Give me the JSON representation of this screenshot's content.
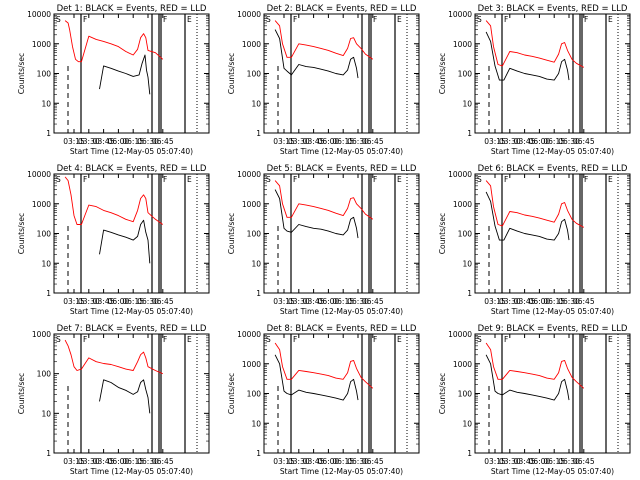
{
  "x_tick_labels": [
    "03:15",
    "03:30",
    "03:45",
    "06:00",
    "06:15",
    "06:30",
    "06:45"
  ],
  "y_tick_labels": [
    "1",
    "10",
    "100",
    "1000",
    "10000"
  ],
  "y_axis_label": "Counts/sec",
  "x_axis_label": "Start Time (12-May-05 05:07:40)",
  "colors": {
    "events": "#000000",
    "lld": "#ff0000",
    "axes": "#000000"
  },
  "chart_data": [
    {
      "type": "line",
      "panel": "Det 1",
      "title": "Det 1: BLACK = Events, RED = LLD",
      "xlabel": "Start Time (12-May-05 05:07:40)",
      "ylabel": "Counts/sec",
      "x_ticks": [
        "03:15",
        "03:30",
        "03:45",
        "06:00",
        "06:15",
        "06:30",
        "06:45"
      ],
      "y_scale": "log",
      "ylim": [
        1,
        10000
      ],
      "markers": [
        "S",
        "F",
        "F",
        "E"
      ],
      "series": [
        {
          "color": "#000000",
          "x_index": [
            0.0,
            0.9,
            1.3,
            1.5,
            1.7,
            1.72,
            2.0,
            2.5,
            3.0,
            3.5,
            4.0,
            4.4,
            4.6,
            4.8,
            4.9,
            5.0,
            5.12
          ],
          "values": [
            null,
            null,
            null,
            null,
            null,
            30,
            180,
            150,
            120,
            100,
            80,
            90,
            220,
            420,
            130,
            75,
            20
          ]
        },
        {
          "color": "#ff0000",
          "x_index": [
            -0.6,
            -0.4,
            -0.3,
            -0.1,
            0.1,
            0.3,
            0.5,
            1.0,
            1.5,
            2.0,
            2.5,
            3.0,
            3.5,
            4.0,
            4.3,
            4.5,
            4.7,
            4.85,
            5.0,
            5.5,
            6.0
          ],
          "values": [
            6000,
            5000,
            3000,
            800,
            300,
            250,
            250,
            1800,
            1400,
            1200,
            1000,
            800,
            550,
            420,
            650,
            1600,
            2200,
            1600,
            600,
            500,
            300
          ]
        }
      ]
    },
    {
      "type": "line",
      "panel": "Det 2",
      "title": "Det 2: BLACK = Events, RED = LLD",
      "xlabel": "Start Time (12-May-05 05:07:40)",
      "ylabel": "Counts/sec",
      "x_ticks": [
        "03:15",
        "03:30",
        "03:45",
        "06:00",
        "06:15",
        "06:30",
        "06:45"
      ],
      "y_scale": "log",
      "ylim": [
        1,
        10000
      ],
      "markers": [
        "S",
        "F",
        "F",
        "E"
      ],
      "series": [
        {
          "color": "#000000",
          "x_index": [
            -0.6,
            -0.3,
            0.0,
            0.2,
            0.5,
            1.0,
            1.5,
            2.0,
            2.5,
            3.0,
            3.5,
            4.0,
            4.3,
            4.5,
            4.7,
            4.9,
            5.0
          ],
          "values": [
            3000,
            1500,
            150,
            120,
            90,
            200,
            170,
            160,
            140,
            120,
            100,
            90,
            130,
            300,
            350,
            150,
            70
          ]
        },
        {
          "color": "#ff0000",
          "x_index": [
            -0.6,
            -0.3,
            -0.1,
            0.2,
            0.5,
            1.0,
            1.5,
            2.0,
            2.5,
            3.0,
            3.5,
            4.0,
            4.3,
            4.5,
            4.7,
            4.9,
            5.2,
            5.5,
            6.0
          ],
          "values": [
            6000,
            4000,
            1000,
            350,
            350,
            1000,
            900,
            800,
            700,
            600,
            480,
            400,
            700,
            1500,
            1600,
            1000,
            700,
            450,
            300
          ]
        }
      ]
    },
    {
      "type": "line",
      "panel": "Det 3",
      "title": "Det 3: BLACK = Events, RED = LLD",
      "xlabel": "Start Time (12-May-05 05:07:40)",
      "ylabel": "Counts/sec",
      "x_ticks": [
        "03:15",
        "03:30",
        "03:45",
        "06:00",
        "06:15",
        "06:30",
        "06:45"
      ],
      "y_scale": "log",
      "ylim": [
        1,
        10000
      ],
      "markers": [
        "S",
        "F",
        "F",
        "E"
      ],
      "series": [
        {
          "color": "#000000",
          "x_index": [
            -0.6,
            -0.3,
            0.0,
            0.3,
            0.6,
            1.0,
            1.5,
            2.0,
            2.5,
            3.0,
            3.5,
            4.0,
            4.3,
            4.5,
            4.7,
            4.9,
            5.0
          ],
          "values": [
            2500,
            1200,
            180,
            60,
            60,
            150,
            120,
            100,
            90,
            80,
            65,
            60,
            100,
            250,
            300,
            130,
            60
          ]
        },
        {
          "color": "#ff0000",
          "x_index": [
            -0.6,
            -0.3,
            -0.1,
            0.2,
            0.5,
            1.0,
            1.5,
            2.0,
            2.5,
            3.0,
            3.5,
            4.0,
            4.3,
            4.5,
            4.7,
            4.9,
            5.2,
            5.5,
            6.0
          ],
          "values": [
            6000,
            4000,
            800,
            200,
            180,
            550,
            500,
            420,
            380,
            330,
            280,
            240,
            450,
            1000,
            1100,
            600,
            300,
            220,
            160
          ]
        }
      ]
    },
    {
      "type": "line",
      "panel": "Det 4",
      "title": "Det 4: BLACK = Events, RED = LLD",
      "xlabel": "Start Time (12-May-05 05:07:40)",
      "ylabel": "Counts/sec",
      "x_ticks": [
        "03:15",
        "03:30",
        "03:45",
        "06:00",
        "06:15",
        "06:30",
        "06:45"
      ],
      "y_scale": "log",
      "ylim": [
        1,
        10000
      ],
      "markers": [
        "S",
        "F",
        "F",
        "E"
      ],
      "series": [
        {
          "color": "#000000",
          "x_index": [
            0.0,
            0.9,
            1.3,
            1.5,
            1.7,
            1.72,
            2.0,
            2.5,
            3.0,
            3.5,
            4.0,
            4.3,
            4.5,
            4.7,
            4.85,
            5.0,
            5.12
          ],
          "values": [
            null,
            null,
            null,
            null,
            null,
            20,
            130,
            110,
            90,
            75,
            60,
            80,
            200,
            280,
            110,
            60,
            10
          ]
        },
        {
          "color": "#ff0000",
          "x_index": [
            -0.6,
            -0.4,
            -0.2,
            0.0,
            0.2,
            0.5,
            1.0,
            1.5,
            2.0,
            2.5,
            3.0,
            3.5,
            4.0,
            4.3,
            4.5,
            4.7,
            4.85,
            5.0,
            5.5,
            6.0
          ],
          "values": [
            8000,
            6000,
            2000,
            400,
            200,
            200,
            900,
            800,
            600,
            500,
            400,
            300,
            250,
            600,
            1500,
            2000,
            1500,
            500,
            300,
            200
          ]
        }
      ]
    },
    {
      "type": "line",
      "panel": "Det 5",
      "title": "Det 5: BLACK = Events, RED = LLD",
      "xlabel": "Start Time (12-May-05 05:07:40)",
      "ylabel": "Counts/sec",
      "x_ticks": [
        "03:15",
        "03:30",
        "03:45",
        "06:00",
        "06:15",
        "06:30",
        "06:45"
      ],
      "y_scale": "log",
      "ylim": [
        1,
        10000
      ],
      "markers": [
        "S",
        "F",
        "F",
        "E"
      ],
      "series": [
        {
          "color": "#000000",
          "x_index": [
            -0.6,
            -0.3,
            0.0,
            0.2,
            0.5,
            1.0,
            1.5,
            2.0,
            2.5,
            3.0,
            3.5,
            4.0,
            4.3,
            4.5,
            4.7,
            4.9,
            5.0
          ],
          "values": [
            3000,
            1500,
            150,
            120,
            110,
            200,
            170,
            150,
            140,
            120,
            100,
            90,
            130,
            300,
            350,
            150,
            70
          ]
        },
        {
          "color": "#ff0000",
          "x_index": [
            -0.6,
            -0.3,
            -0.1,
            0.2,
            0.5,
            1.0,
            1.5,
            2.0,
            2.5,
            3.0,
            3.5,
            4.0,
            4.3,
            4.5,
            4.7,
            4.9,
            5.2,
            5.5,
            6.0
          ],
          "values": [
            6000,
            4000,
            1000,
            350,
            350,
            1000,
            900,
            800,
            700,
            600,
            480,
            400,
            700,
            1500,
            1600,
            1000,
            700,
            450,
            300
          ]
        }
      ]
    },
    {
      "type": "line",
      "panel": "Det 6",
      "title": "Det 6: BLACK = Events, RED = LLD",
      "xlabel": "Start Time (12-May-05 05:07:40)",
      "ylabel": "Counts/sec",
      "x_ticks": [
        "03:15",
        "03:30",
        "03:45",
        "06:00",
        "06:15",
        "06:30",
        "06:45"
      ],
      "y_scale": "log",
      "ylim": [
        1,
        10000
      ],
      "markers": [
        "S",
        "F",
        "F",
        "E"
      ],
      "series": [
        {
          "color": "#000000",
          "x_index": [
            -0.6,
            -0.3,
            0.0,
            0.3,
            0.6,
            1.0,
            1.5,
            2.0,
            2.5,
            3.0,
            3.5,
            4.0,
            4.3,
            4.5,
            4.7,
            4.9,
            5.0
          ],
          "values": [
            2500,
            1200,
            180,
            60,
            60,
            150,
            120,
            100,
            90,
            80,
            65,
            60,
            100,
            250,
            300,
            130,
            60
          ]
        },
        {
          "color": "#ff0000",
          "x_index": [
            -0.6,
            -0.3,
            -0.1,
            0.2,
            0.5,
            1.0,
            1.5,
            2.0,
            2.5,
            3.0,
            3.5,
            4.0,
            4.3,
            4.5,
            4.7,
            4.9,
            5.2,
            5.5,
            6.0
          ],
          "values": [
            6000,
            4000,
            800,
            200,
            180,
            550,
            500,
            420,
            380,
            330,
            280,
            240,
            450,
            1000,
            1100,
            600,
            300,
            220,
            160
          ]
        }
      ]
    },
    {
      "type": "line",
      "panel": "Det 7",
      "title": "Det 7: BLACK = Events, RED = LLD",
      "xlabel": "Start Time (12-May-05 05:07:40)",
      "ylabel": "Counts/sec",
      "x_ticks": [
        "03:15",
        "03:30",
        "03:45",
        "06:00",
        "06:15",
        "06:30",
        "06:45"
      ],
      "y_scale": "log",
      "ylim": [
        1,
        1000
      ],
      "markers": [
        "S",
        "F",
        "F",
        "E"
      ],
      "series": [
        {
          "color": "#000000",
          "x_index": [
            0.0,
            0.9,
            1.3,
            1.5,
            1.7,
            1.72,
            2.0,
            2.5,
            3.0,
            3.5,
            4.0,
            4.3,
            4.5,
            4.7,
            4.85,
            5.0,
            5.12
          ],
          "values": [
            null,
            null,
            null,
            null,
            null,
            20,
            70,
            60,
            45,
            38,
            30,
            35,
            60,
            70,
            40,
            25,
            10
          ]
        },
        {
          "color": "#ff0000",
          "x_index": [
            -0.6,
            -0.4,
            -0.2,
            0.0,
            0.2,
            0.5,
            1.0,
            1.5,
            2.0,
            2.5,
            3.0,
            3.5,
            4.0,
            4.3,
            4.5,
            4.7,
            4.85,
            5.0,
            5.5,
            6.0
          ],
          "values": [
            700,
            500,
            300,
            150,
            120,
            130,
            250,
            200,
            180,
            170,
            150,
            130,
            120,
            200,
            300,
            350,
            250,
            150,
            120,
            100
          ]
        }
      ]
    },
    {
      "type": "line",
      "panel": "Det 8",
      "title": "Det 8: BLACK = Events, RED = LLD",
      "xlabel": "Start Time (12-May-05 05:07:40)",
      "ylabel": "Counts/sec",
      "x_ticks": [
        "03:15",
        "03:30",
        "03:45",
        "06:00",
        "06:15",
        "06:30",
        "06:45"
      ],
      "y_scale": "log",
      "ylim": [
        1,
        10000
      ],
      "markers": [
        "S",
        "F",
        "F",
        "E"
      ],
      "series": [
        {
          "color": "#000000",
          "x_index": [
            -0.6,
            -0.3,
            0.0,
            0.2,
            0.5,
            1.0,
            1.5,
            2.0,
            2.5,
            3.0,
            3.5,
            4.0,
            4.3,
            4.5,
            4.7,
            4.9,
            5.0
          ],
          "values": [
            2000,
            1000,
            120,
            100,
            90,
            130,
            110,
            100,
            90,
            80,
            70,
            60,
            100,
            250,
            300,
            120,
            60
          ]
        },
        {
          "color": "#ff0000",
          "x_index": [
            -0.6,
            -0.3,
            -0.1,
            0.2,
            0.5,
            1.0,
            1.5,
            2.0,
            2.5,
            3.0,
            3.5,
            4.0,
            4.3,
            4.5,
            4.7,
            4.9,
            5.2,
            5.5,
            6.0
          ],
          "values": [
            5000,
            3000,
            800,
            300,
            300,
            600,
            550,
            500,
            450,
            400,
            330,
            300,
            500,
            1200,
            1300,
            700,
            350,
            250,
            150
          ]
        }
      ]
    },
    {
      "type": "line",
      "panel": "Det 9",
      "title": "Det 9: BLACK = Events, RED = LLD",
      "xlabel": "Start Time (12-May-05 05:07:40)",
      "ylabel": "Counts/sec",
      "x_ticks": [
        "03:15",
        "03:30",
        "03:45",
        "06:00",
        "06:15",
        "06:30",
        "06:45"
      ],
      "y_scale": "log",
      "ylim": [
        1,
        10000
      ],
      "markers": [
        "S",
        "F",
        "F",
        "E"
      ],
      "series": [
        {
          "color": "#000000",
          "x_index": [
            -0.6,
            -0.3,
            0.0,
            0.2,
            0.5,
            1.0,
            1.5,
            2.0,
            2.5,
            3.0,
            3.5,
            4.0,
            4.3,
            4.5,
            4.7,
            4.9,
            5.0
          ],
          "values": [
            2000,
            1000,
            120,
            100,
            90,
            130,
            110,
            100,
            90,
            80,
            70,
            60,
            100,
            250,
            300,
            120,
            60
          ]
        },
        {
          "color": "#ff0000",
          "x_index": [
            -0.6,
            -0.3,
            -0.1,
            0.2,
            0.5,
            1.0,
            1.5,
            2.0,
            2.5,
            3.0,
            3.5,
            4.0,
            4.3,
            4.5,
            4.7,
            4.9,
            5.2,
            5.5,
            6.0
          ],
          "values": [
            5000,
            3000,
            800,
            300,
            300,
            600,
            550,
            500,
            450,
            400,
            330,
            300,
            500,
            1200,
            1300,
            700,
            350,
            250,
            150
          ]
        }
      ]
    }
  ]
}
